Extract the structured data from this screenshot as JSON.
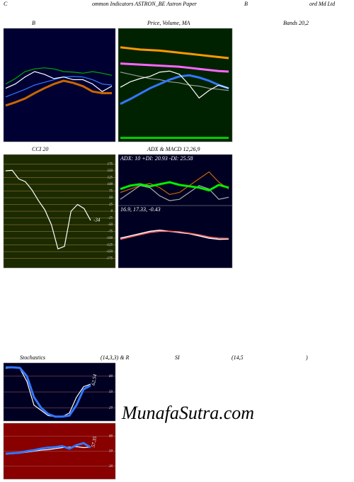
{
  "texts": [
    "C",
    "ommon  Indicators ASTRON_BE Astron  Paper",
    "B",
    "ord Md Ltd",
    "Bands 20,2",
    "Stochastics",
    "(14,3,3) & R",
    "SI",
    "(14,5",
    ")",
    "MunafaSutra.com"
  ],
  "chart_data": [
    {
      "type": "line",
      "title": "B",
      "ylim": [
        0,
        100
      ],
      "background": "#000033",
      "series": [
        {
          "color": "#00aa00",
          "values": [
            51,
            56,
            62.5,
            65,
            66,
            65,
            62.5,
            62,
            61,
            62.5,
            61,
            59
          ]
        },
        {
          "color": "#cc6600",
          "values": [
            31,
            34,
            37.5,
            42.5,
            47,
            51,
            54,
            52,
            49,
            44,
            42.5,
            42.5
          ]
        },
        {
          "color": "#3377ff",
          "values": [
            39,
            42.5,
            46,
            50,
            52.5,
            55,
            57.5,
            58,
            57.5,
            55,
            51,
            50
          ]
        },
        {
          "color": "#ffffff",
          "values": [
            47,
            51,
            57.5,
            62.5,
            60,
            56,
            57.5,
            55,
            55,
            51,
            44,
            49
          ]
        }
      ]
    },
    {
      "type": "line",
      "title": "Price, Volume, MA",
      "ylim": [
        0,
        100
      ],
      "background": "#002200",
      "series": [
        {
          "color": "#ff9900",
          "values": [
            85,
            84,
            83,
            82.5,
            82,
            81,
            80,
            79,
            78,
            77,
            76,
            75
          ]
        },
        {
          "color": "#ff66ff",
          "values": [
            70,
            69.5,
            69,
            68.5,
            68,
            67.5,
            67,
            66,
            65,
            64,
            63,
            62.5
          ]
        },
        {
          "color": "#999999",
          "values": [
            62,
            60,
            58,
            56,
            55,
            53,
            52,
            50,
            49,
            47,
            46,
            45
          ]
        },
        {
          "color": "#3377ff",
          "values": [
            32.5,
            37,
            42,
            47,
            51,
            55,
            58,
            59,
            57,
            54,
            50,
            47
          ]
        },
        {
          "color": "#ffffff",
          "values": [
            48,
            53,
            56,
            58,
            62,
            63,
            60,
            50,
            38,
            45,
            50,
            47
          ]
        },
        {
          "color": "#00cc00",
          "values": [
            1,
            1,
            1,
            1,
            1,
            1,
            1,
            1,
            1,
            1,
            1,
            1
          ]
        }
      ]
    },
    {
      "type": "line",
      "title": "CCI 20",
      "ylim": [
        -200,
        200
      ],
      "background": "#1c2a00",
      "grid": true,
      "yticks": [
        175,
        150,
        125,
        100,
        75,
        50,
        25,
        0,
        -25,
        -50,
        -75,
        -100,
        -125,
        -150,
        -175
      ],
      "series": [
        {
          "color": "#ffffff",
          "values": [
            150,
            152,
            120,
            110,
            80,
            40,
            5,
            -50,
            -140,
            -130,
            0,
            25,
            10,
            -34
          ]
        }
      ]
    },
    {
      "type": "line",
      "title": "ADX  & MACD 12,26,9",
      "ylim": [
        0,
        60
      ],
      "background": "#000022",
      "subtitle": "ADX: 10  +DI: 20.93 -DI: 25.58",
      "series": [
        {
          "color": "#cc6600",
          "values": [
            15,
            20,
            25,
            28,
            22,
            12,
            15,
            25,
            35,
            45,
            30,
            20
          ]
        },
        {
          "color": "#aaaaaa",
          "values": [
            5,
            15,
            25,
            22,
            10,
            3,
            5,
            15,
            25,
            20,
            5,
            8
          ]
        },
        {
          "color": "#00ee00",
          "values": [
            20,
            25,
            27,
            24,
            27,
            30,
            26,
            24,
            22,
            18,
            26,
            22
          ]
        }
      ],
      "macd_title": "16.9, 17.33, -0.43",
      "macd_ylim": [
        -10,
        10
      ],
      "macd_series": [
        {
          "color": "#ffffff",
          "values": [
            0,
            1,
            2,
            3,
            3.5,
            3,
            2.5,
            2,
            1,
            0,
            -0.5,
            -0.4
          ]
        },
        {
          "color": "#ff6666",
          "values": [
            -0.5,
            0.5,
            1.5,
            2.5,
            3,
            3,
            2.8,
            2.2,
            1.5,
            0.5,
            0,
            -0.1
          ]
        }
      ]
    },
    {
      "type": "line",
      "ylim": [
        0,
        100
      ],
      "background": "#000022",
      "grid": true,
      "yticks": [
        80,
        50,
        20
      ],
      "series": [
        {
          "color": "#ffffff",
          "values": [
            95,
            97,
            95,
            70,
            25,
            15,
            5,
            3,
            3,
            10,
            40,
            60,
            65
          ]
        },
        {
          "color": "#3377ff",
          "values": [
            97,
            97,
            96,
            80,
            40,
            20,
            8,
            3,
            3,
            5,
            25,
            55,
            62.54
          ]
        }
      ]
    },
    {
      "type": "line",
      "ylim": [
        0,
        100
      ],
      "background": "#880000",
      "grid": true,
      "yticks": [
        80,
        50,
        20
      ],
      "series": [
        {
          "color": "#ffffff",
          "values": [
            44,
            45,
            46,
            48,
            50,
            52,
            53,
            55,
            57,
            58,
            59,
            57,
            58
          ]
        },
        {
          "color": "#3377ff",
          "values": [
            45,
            46,
            47,
            50,
            52,
            55,
            57,
            58,
            60,
            55,
            62,
            66,
            57.35
          ]
        }
      ]
    }
  ]
}
